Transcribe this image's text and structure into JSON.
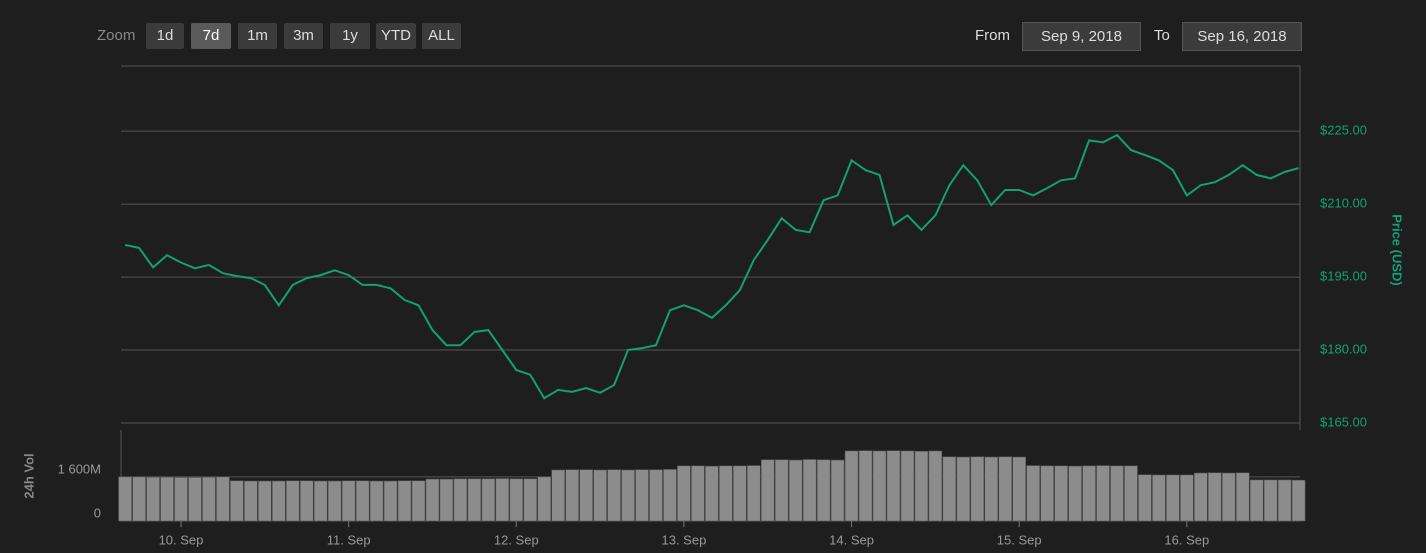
{
  "controls": {
    "zoom_label": "Zoom",
    "zoom_buttons": [
      "1d",
      "7d",
      "1m",
      "3m",
      "1y",
      "YTD",
      "ALL"
    ],
    "selected": 1,
    "from_label": "From",
    "from_value": "Sep 9, 2018",
    "to_label": "To",
    "to_value": "Sep 16, 2018"
  },
  "chart_data": [
    {
      "type": "line",
      "y_label": "Price (USD)",
      "color": "#12a075",
      "categories": [
        null,
        null,
        null,
        null,
        "10. Sep",
        null,
        null,
        null,
        null,
        null,
        null,
        null,
        null,
        null,
        null,
        null,
        "11. Sep",
        null,
        null,
        null,
        null,
        null,
        null,
        null,
        null,
        null,
        null,
        null,
        "12. Sep",
        null,
        null,
        null,
        null,
        null,
        null,
        null,
        null,
        null,
        null,
        null,
        "13. Sep",
        null,
        null,
        null,
        null,
        null,
        null,
        null,
        null,
        null,
        null,
        null,
        "14. Sep",
        null,
        null,
        null,
        null,
        null,
        null,
        null,
        null,
        null,
        null,
        null,
        "15. Sep",
        null,
        null,
        null,
        null,
        null,
        null,
        null,
        null,
        null,
        null,
        null,
        "16. Sep",
        null,
        null,
        null,
        null,
        null,
        null,
        null,
        null
      ],
      "values": [
        201.6,
        201,
        197,
        199.5,
        198,
        196.8,
        197.5,
        195.8,
        195.2,
        194.8,
        193.4,
        189.2,
        193.4,
        194.8,
        195.4,
        196.4,
        195.4,
        193.4,
        193.4,
        192.7,
        190.3,
        189.2,
        184.1,
        181,
        181,
        183.7,
        184.1,
        180,
        175.9,
        174.9,
        170.1,
        171.8,
        171.4,
        172.2,
        171.2,
        172.8,
        180,
        180.4,
        181,
        188.2,
        189.2,
        188.2,
        186.6,
        189.2,
        192.3,
        198.5,
        202.6,
        207.1,
        204.7,
        204.2,
        210.8,
        211.8,
        219,
        217,
        216,
        205.7,
        207.7,
        204.7,
        207.7,
        213.9,
        218,
        214.9,
        209.8,
        212.9,
        212.9,
        211.8,
        213.3,
        214.9,
        215.3,
        223.1,
        222.7,
        224.2,
        221.1,
        220.1,
        219,
        217,
        211.8,
        213.9,
        214.5,
        216,
        218,
        216,
        215.3,
        216.6,
        217.4
      ],
      "ylim": [
        165,
        238.4
      ],
      "yticks": [
        {
          "value": 165,
          "label": "$165.00"
        },
        {
          "value": 180,
          "label": "$180.00"
        },
        {
          "value": 195,
          "label": "$195.00"
        },
        {
          "value": 210,
          "label": "$210.00"
        },
        {
          "value": 225,
          "label": "$225.00"
        }
      ],
      "grid": true
    },
    {
      "type": "bar",
      "y_label": "24h Vol",
      "color": "#8c8c8c",
      "values": [
        1600,
        1600,
        1590,
        1590,
        1580,
        1580,
        1590,
        1600,
        1460,
        1450,
        1450,
        1450,
        1460,
        1460,
        1450,
        1450,
        1460,
        1460,
        1450,
        1450,
        1460,
        1460,
        1520,
        1520,
        1530,
        1530,
        1530,
        1540,
        1530,
        1530,
        1600,
        1850,
        1860,
        1860,
        1850,
        1860,
        1850,
        1860,
        1860,
        1870,
        2000,
        2000,
        1990,
        2000,
        2000,
        2010,
        2220,
        2220,
        2210,
        2230,
        2220,
        2210,
        2540,
        2550,
        2540,
        2550,
        2540,
        2530,
        2540,
        2330,
        2320,
        2330,
        2320,
        2330,
        2320,
        2010,
        2000,
        2000,
        1990,
        2000,
        2010,
        2000,
        2000,
        1680,
        1670,
        1670,
        1670,
        1740,
        1750,
        1740,
        1750,
        1490,
        1490,
        1490,
        1480
      ],
      "ylim": [
        0,
        3300
      ],
      "yticks": [
        0,
        {
          "value": 1600,
          "label": "1 600M"
        }
      ]
    }
  ]
}
